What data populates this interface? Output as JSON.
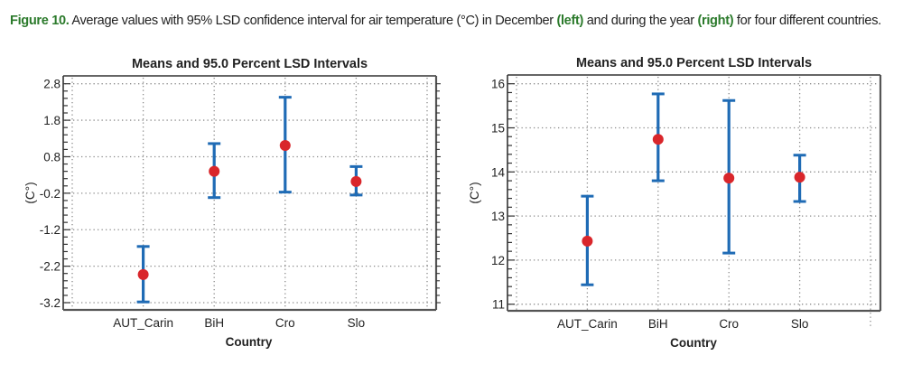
{
  "caption": {
    "label": "Figure 10.",
    "text_1": " Average values with 95% LSD confidence interval for air temperature (°C) in December ",
    "left": "(left)",
    "text_2": " and during the year ",
    "right": "(right)",
    "text_3": " for four different countries."
  },
  "colors": {
    "caption_accent": "#2b7a2b",
    "interval": "#1f6bb5",
    "mean_marker": "#d9262b",
    "grid": "#8a8a8a",
    "axis": "#555555"
  },
  "chart_data": [
    {
      "type": "scatter",
      "subtype": "means-with-error-bars",
      "title": "Means and 95.0 Percent LSD Intervals",
      "xlabel": "Country",
      "ylabel": "(C°)",
      "categories": [
        "AUT_Carin",
        "BiH",
        "Cro",
        "Slo"
      ],
      "yticks": [
        2.8,
        1.8,
        0.8,
        -0.2,
        -1.2,
        -2.2,
        -3.2
      ],
      "ytick_labels": [
        "2.8",
        "1.8",
        "0.8",
        "-0.2",
        "-1.2",
        "-2.2",
        "-3.2"
      ],
      "ylim": [
        -3.4,
        3.0
      ],
      "grid": true,
      "series": [
        {
          "name": "Mean",
          "values": [
            -2.43,
            0.4,
            1.11,
            0.12
          ]
        },
        {
          "name": "LSD upper",
          "values": [
            -1.66,
            1.16,
            2.43,
            0.53
          ]
        },
        {
          "name": "LSD lower",
          "values": [
            -3.18,
            -0.32,
            -0.17,
            -0.25
          ]
        }
      ]
    },
    {
      "type": "scatter",
      "subtype": "means-with-error-bars",
      "title": "Means and 95.0 Percent LSD Intervals",
      "xlabel": "Country",
      "ylabel": "(C°)",
      "categories": [
        "AUT_Carin",
        "BiH",
        "Cro",
        "Slo"
      ],
      "yticks": [
        16,
        15,
        14,
        13,
        12,
        11
      ],
      "ytick_labels": [
        "16",
        "15",
        "14",
        "13",
        "12",
        "11"
      ],
      "ylim": [
        10.85,
        16.2
      ],
      "grid": true,
      "series": [
        {
          "name": "Mean",
          "values": [
            12.43,
            14.74,
            13.86,
            13.88
          ]
        },
        {
          "name": "LSD upper",
          "values": [
            13.45,
            15.77,
            15.62,
            14.38
          ]
        },
        {
          "name": "LSD lower",
          "values": [
            11.44,
            13.8,
            12.16,
            13.33
          ]
        }
      ]
    }
  ]
}
